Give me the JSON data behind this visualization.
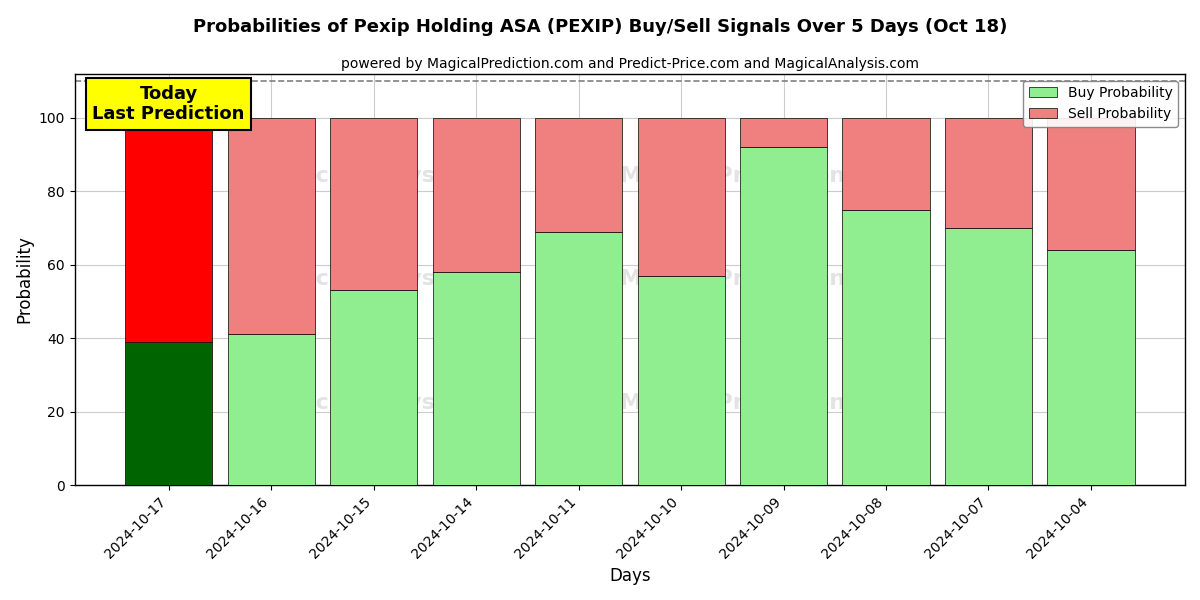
{
  "title": "Probabilities of Pexip Holding ASA (PEXIP) Buy/Sell Signals Over 5 Days (Oct 18)",
  "subtitle": "powered by MagicalPrediction.com and Predict-Price.com and MagicalAnalysis.com",
  "xlabel": "Days",
  "ylabel": "Probability",
  "dates": [
    "2024-10-17",
    "2024-10-16",
    "2024-10-15",
    "2024-10-14",
    "2024-10-11",
    "2024-10-10",
    "2024-10-09",
    "2024-10-08",
    "2024-10-07",
    "2024-10-04"
  ],
  "buy_probs": [
    39,
    41,
    53,
    58,
    69,
    57,
    92,
    75,
    70,
    64
  ],
  "sell_probs": [
    61,
    59,
    47,
    42,
    31,
    43,
    8,
    25,
    30,
    36
  ],
  "buy_colors": [
    "#006400",
    "#90EE90",
    "#90EE90",
    "#90EE90",
    "#90EE90",
    "#90EE90",
    "#90EE90",
    "#90EE90",
    "#90EE90",
    "#90EE90"
  ],
  "sell_colors": [
    "#FF0000",
    "#F08080",
    "#F08080",
    "#F08080",
    "#F08080",
    "#F08080",
    "#F08080",
    "#F08080",
    "#F08080",
    "#F08080"
  ],
  "legend_buy_color": "#90EE90",
  "legend_sell_color": "#F08080",
  "today_box_color": "#FFFF00",
  "today_label": "Today\nLast Prediction",
  "ylim": [
    0,
    112
  ],
  "dashed_line_y": 110,
  "background_color": "#ffffff",
  "grid_color": "#cccccc"
}
